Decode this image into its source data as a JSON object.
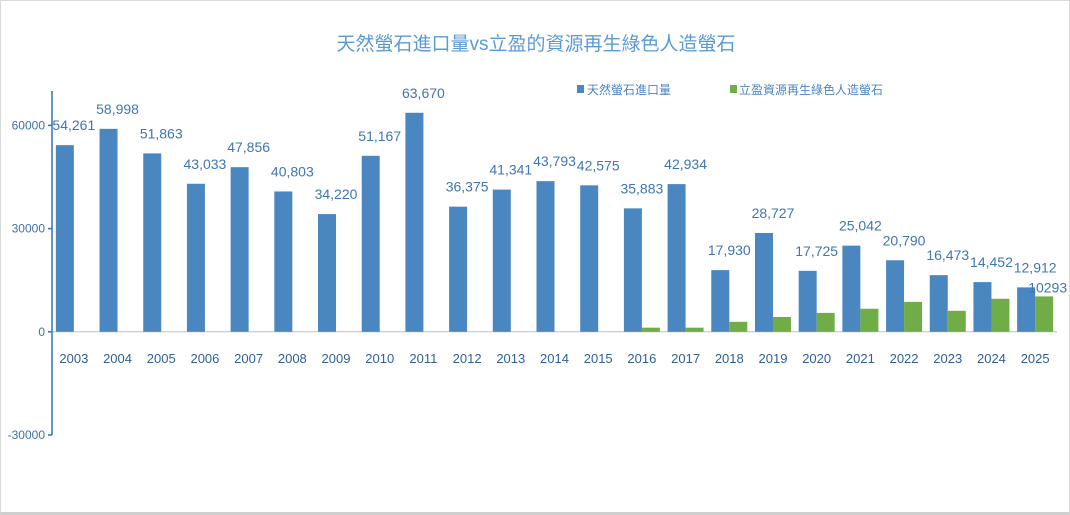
{
  "chart_data": {
    "type": "bar",
    "title": "天然螢石進口量vs立盈的資源再生綠色人造螢石",
    "xlabel": "",
    "ylabel": "",
    "categories": [
      "2003",
      "2004",
      "2005",
      "2006",
      "2007",
      "2008",
      "2009",
      "2010",
      "2011",
      "2012",
      "2013",
      "2014",
      "2015",
      "2016",
      "2017",
      "2018",
      "2019",
      "2020",
      "2021",
      "2022",
      "2023",
      "2024",
      "2025"
    ],
    "ylim": [
      -30000,
      70000
    ],
    "y_ticks": [
      60000,
      30000,
      0,
      -30000
    ],
    "grid": false,
    "legend_position": "top",
    "series": [
      {
        "name": "天然螢石進口量",
        "color": "#4a86c0",
        "values": [
          54261,
          58998,
          51863,
          43033,
          47856,
          40803,
          34220,
          51167,
          63670,
          36375,
          41341,
          43793,
          42575,
          35883,
          42934,
          17930,
          28727,
          17725,
          25042,
          20790,
          16473,
          14452,
          12912
        ],
        "data_labels": [
          "54,261",
          "58,998",
          "51,863",
          "43,033",
          "47,856",
          "40,803",
          "34,220",
          "51,167",
          "63,670",
          "36,375",
          "41,341",
          "43,793",
          "42,575",
          "35,883",
          "42,934",
          "17,930",
          "28,727",
          "17,725",
          "25,042",
          "20,790",
          "16,473",
          "14,452",
          "12,912"
        ]
      },
      {
        "name": "立盈資源再生綠色人造螢石",
        "color": "#70ad47",
        "values": [
          null,
          null,
          null,
          null,
          null,
          null,
          null,
          null,
          null,
          null,
          null,
          null,
          null,
          1200,
          1200,
          2900,
          4300,
          5500,
          6700,
          8700,
          6100,
          9600,
          10293
        ],
        "data_labels": [
          null,
          null,
          null,
          null,
          null,
          null,
          null,
          null,
          null,
          null,
          null,
          null,
          null,
          null,
          null,
          null,
          null,
          null,
          null,
          null,
          null,
          null,
          "10293"
        ]
      }
    ]
  }
}
